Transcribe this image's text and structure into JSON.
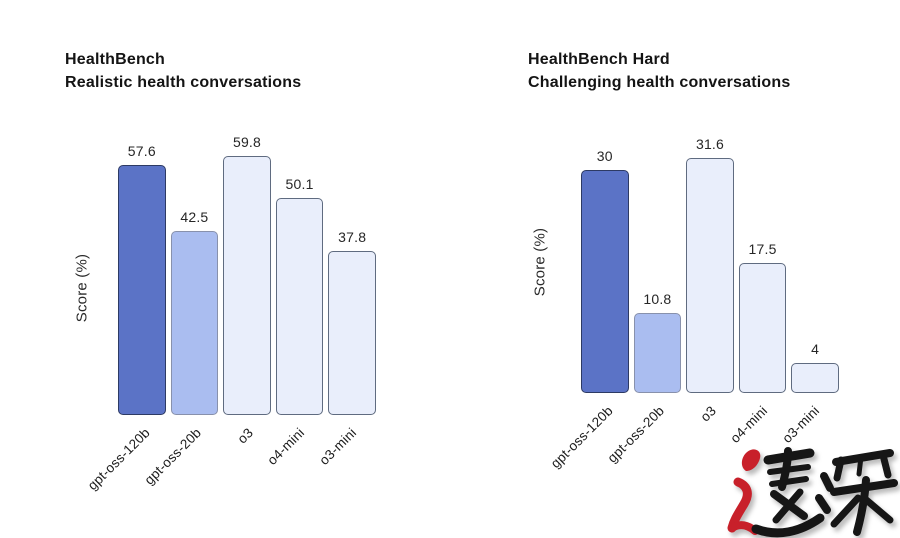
{
  "page": {
    "background": "#ffffff"
  },
  "chart_data": [
    {
      "type": "bar",
      "title": "HealthBench",
      "subtitle": "Realistic health conversations",
      "ylabel": "Score (%)",
      "categories": [
        "gpt-oss-120b",
        "gpt-oss-20b",
        "o3",
        "o4-mini",
        "o3-mini"
      ],
      "values": [
        57.6,
        42.5,
        59.8,
        50.1,
        37.8
      ],
      "value_labels": [
        "57.6",
        "42.5",
        "59.8",
        "50.1",
        "37.8"
      ],
      "ylim": [
        0,
        60
      ],
      "grid": false,
      "legend": false,
      "bar_colors": [
        {
          "fill": "#5b73c6",
          "border": "#2d3a64"
        },
        {
          "fill": "#aabdf0",
          "border": "#8891ac"
        },
        {
          "fill": "#e9eefb",
          "border": "#5f6b80"
        },
        {
          "fill": "#e9eefb",
          "border": "#5f6b80"
        },
        {
          "fill": "#e9eefb",
          "border": "#5f6b80"
        }
      ]
    },
    {
      "type": "bar",
      "title": "HealthBench Hard",
      "subtitle": "Challenging health conversations",
      "ylabel": "Score (%)",
      "categories": [
        "gpt-oss-120b",
        "gpt-oss-20b",
        "o3",
        "o4-mini",
        "o3-mini"
      ],
      "values": [
        30,
        10.8,
        31.6,
        17.5,
        4
      ],
      "value_labels": [
        "30",
        "10.8",
        "31.6",
        "17.5",
        "4"
      ],
      "ylim": [
        0,
        35
      ],
      "grid": false,
      "legend": false,
      "bar_colors": [
        {
          "fill": "#5b73c6",
          "border": "#2d3a64"
        },
        {
          "fill": "#aabdf0",
          "border": "#8891ac"
        },
        {
          "fill": "#e9eefb",
          "border": "#5f6b80"
        },
        {
          "fill": "#e9eefb",
          "border": "#5f6b80"
        },
        {
          "fill": "#e9eefb",
          "border": "#5f6b80"
        }
      ]
    }
  ],
  "watermark": {
    "text": "速深",
    "red": "#c8202a",
    "black": "#161616"
  }
}
